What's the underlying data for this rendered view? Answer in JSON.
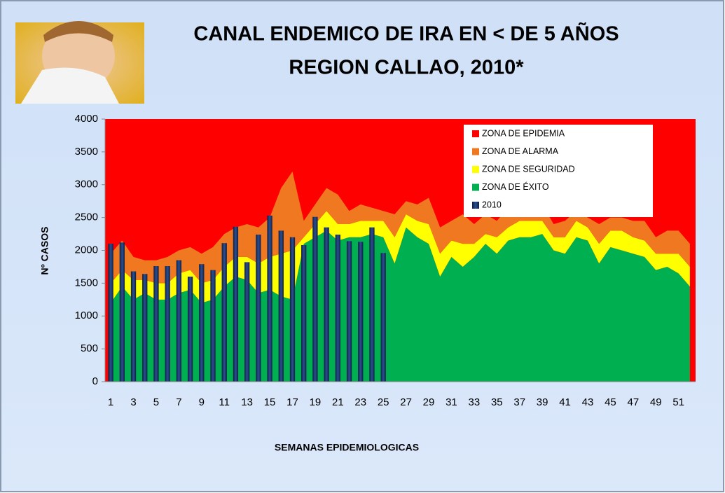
{
  "chart_data": {
    "type": "area",
    "title": [
      "CANAL ENDEMICO DE IRA EN < DE 5 AÑOS",
      "REGION CALLAO, 2010*"
    ],
    "x_label": "SEMANAS EPIDEMIOLOGICAS",
    "y_label": "Nº CASOS",
    "categories": [
      1,
      null,
      3,
      null,
      5,
      null,
      7,
      null,
      9,
      null,
      11,
      null,
      13,
      null,
      15,
      null,
      17,
      null,
      19,
      null,
      21,
      null,
      23,
      null,
      25,
      null,
      27,
      null,
      29,
      null,
      31,
      null,
      33,
      null,
      35,
      null,
      37,
      null,
      39,
      null,
      41,
      null,
      43,
      null,
      45,
      null,
      47,
      null,
      49,
      null,
      51,
      null
    ],
    "ylim": [
      0,
      4000
    ],
    "yticks": [
      0,
      500,
      1000,
      1500,
      2000,
      2500,
      3000,
      3500,
      4000
    ],
    "series": [
      {
        "name": "ZONA DE EPIDEMIA",
        "color": "#ff0000"
      },
      {
        "name": "ZONA DE ALARMA",
        "color": "#f07820",
        "type": "area",
        "values": [
          450,
          450,
          350,
          300,
          350,
          400,
          350,
          350,
          450,
          500,
          500,
          450,
          500,
          550,
          600,
          1000,
          1200,
          250,
          300,
          350,
          450,
          200,
          250,
          200,
          150,
          350,
          200,
          250,
          400,
          400,
          300,
          450,
          300,
          300,
          250,
          300,
          250,
          250,
          250,
          200,
          250,
          150,
          150,
          300,
          200,
          200,
          250,
          300,
          250,
          350,
          350,
          350
        ]
      },
      {
        "name": "ZONA DE SEGURIDAD",
        "color": "#ffff00",
        "type": "area",
        "values": [
          300,
          250,
          300,
          200,
          250,
          250,
          300,
          300,
          300,
          300,
          300,
          300,
          350,
          450,
          500,
          650,
          750,
          100,
          200,
          300,
          250,
          200,
          250,
          200,
          250,
          400,
          200,
          250,
          300,
          350,
          250,
          350,
          200,
          150,
          250,
          200,
          250,
          250,
          200,
          200,
          250,
          250,
          200,
          300,
          250,
          300,
          250,
          250,
          250,
          200,
          300,
          300
        ]
      },
      {
        "name": "ZONA DE ÉXITO",
        "color": "#00b050",
        "type": "area",
        "values": [
          1200,
          1450,
          1250,
          1350,
          1250,
          1250,
          1350,
          1400,
          1200,
          1250,
          1450,
          1600,
          1550,
          1350,
          1400,
          1300,
          1250,
          2100,
          2200,
          2300,
          2150,
          2200,
          2200,
          2250,
          2200,
          1800,
          2350,
          2200,
          2100,
          1600,
          1900,
          1750,
          1900,
          2100,
          1950,
          2150,
          2200,
          2200,
          2250,
          2000,
          1950,
          2200,
          2150,
          1800,
          2050,
          2000,
          1950,
          1900,
          1700,
          1750,
          1650,
          1450
        ]
      },
      {
        "name": "2010",
        "color": "#1f3864",
        "type": "bar",
        "values": [
          2100,
          2120,
          1680,
          1640,
          1760,
          1760,
          1850,
          1600,
          1790,
          1700,
          2110,
          2360,
          1820,
          2240,
          2530,
          2300,
          2200,
          2080,
          2510,
          2350,
          2240,
          2140,
          2130,
          2350,
          1960,
          null,
          null,
          null,
          null,
          null,
          null,
          null,
          null,
          null,
          null,
          null,
          null,
          null,
          null,
          null,
          null,
          null,
          null,
          null,
          null,
          null,
          null,
          null,
          null,
          null,
          null,
          null
        ]
      }
    ]
  }
}
